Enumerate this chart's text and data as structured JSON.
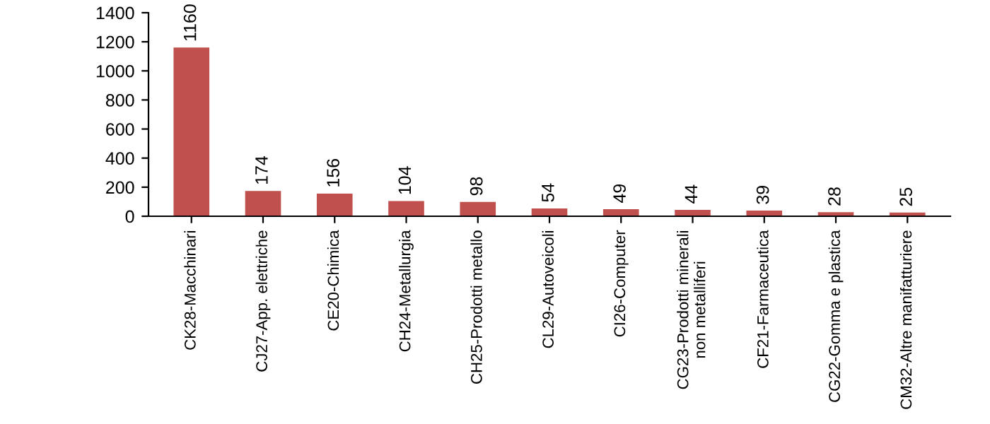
{
  "chart_data": {
    "type": "bar",
    "categories": [
      "CK28-Macchinari",
      "CJ27-App. elettriche",
      "CE20-Chimica",
      "CH24-Metallurgia",
      "CH25-Prodotti metallo",
      "CL29-Autoveicoli",
      "CI26-Computer",
      "CG23-Prodotti minerali\nnon metalliferi",
      "CF21-Farmaceutica",
      "CG22-Gomma e plastica",
      "CM32-Altre manifatturiere"
    ],
    "values": [
      1160,
      174,
      156,
      104,
      98,
      54,
      49,
      44,
      39,
      28,
      25
    ],
    "color": "#c0504d",
    "ylim": [
      0,
      1400
    ],
    "yticks": [
      0,
      200,
      400,
      600,
      800,
      1000,
      1200,
      1400
    ],
    "grid": false,
    "data_labels": true
  }
}
